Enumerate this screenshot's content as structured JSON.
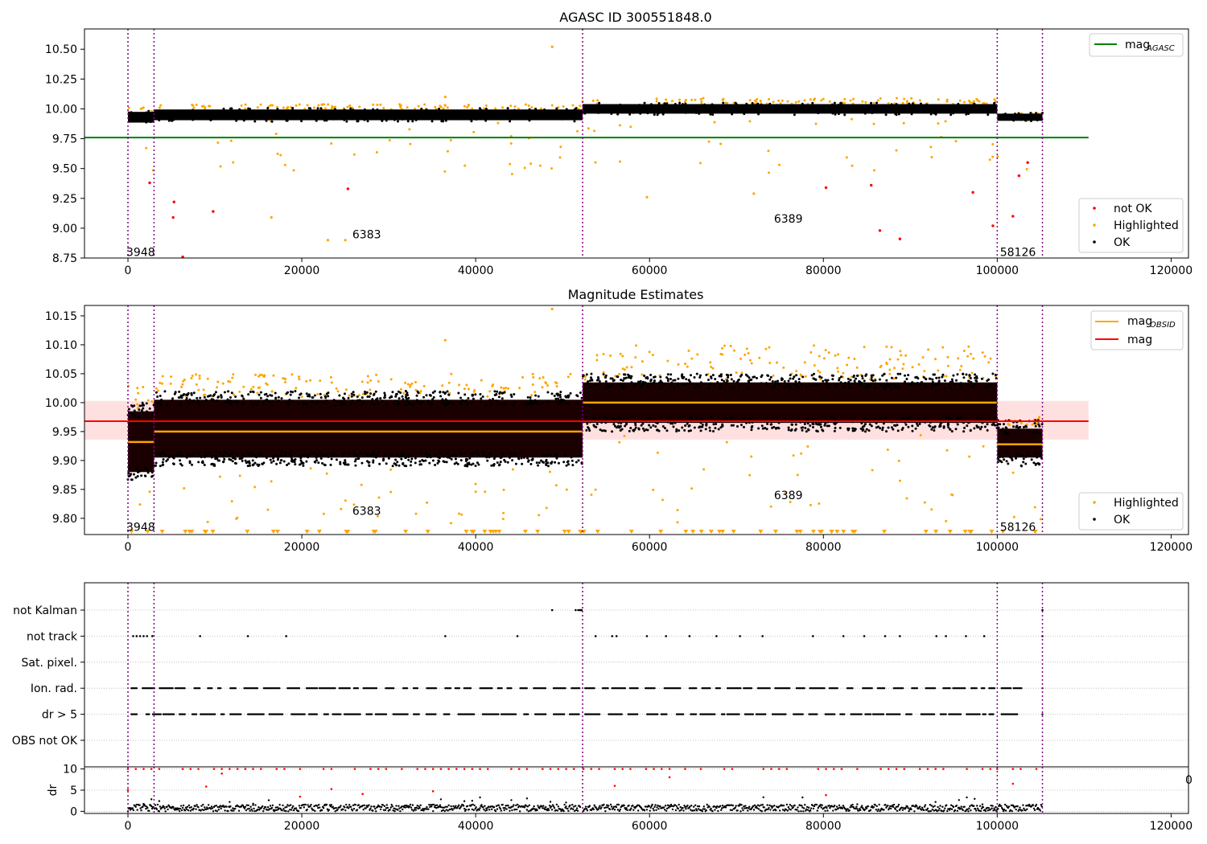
{
  "chart_data": [
    {
      "type": "scatter",
      "title": "AGASC ID 300551848.0",
      "xlim": [
        -5000,
        122000
      ],
      "ylim": [
        8.75,
        10.67
      ],
      "xticks": [
        0,
        20000,
        40000,
        60000,
        80000,
        100000,
        120000
      ],
      "yticks": [
        8.75,
        9.0,
        9.25,
        9.5,
        9.75,
        10.0,
        10.25,
        10.5
      ],
      "ytick_labels": [
        "8.75",
        "9.00",
        "9.25",
        "9.50",
        "9.75",
        "10.00",
        "10.25",
        "10.50"
      ],
      "observation_boundaries": [
        0,
        3000,
        52300,
        100000,
        105200
      ],
      "reference_line": {
        "label": "mag",
        "label_sub": "AGASC",
        "value": 9.76,
        "x_range": [
          -5000,
          110500
        ],
        "color": "#008000"
      },
      "legend_top": [
        {
          "label": "mag",
          "sub": "AGASC",
          "kind": "line",
          "color": "#008000"
        }
      ],
      "legend_bottom": [
        {
          "label": "not OK",
          "color": "#ff0000"
        },
        {
          "label": "Highlighted",
          "color": "#ffa500"
        },
        {
          "label": "OK",
          "color": "#000000"
        }
      ],
      "bands": [
        {
          "x": [
            0,
            3000
          ],
          "ok_center": 9.93,
          "ok_halfwidth": 0.045,
          "hl_top": 10.02
        },
        {
          "x": [
            3000,
            52300
          ],
          "ok_center": 9.95,
          "ok_halfwidth": 0.045,
          "hl_top": 10.04
        },
        {
          "x": [
            52300,
            100000
          ],
          "ok_center": 10.0,
          "ok_halfwidth": 0.04,
          "hl_top": 10.09
        },
        {
          "x": [
            100000,
            105200
          ],
          "ok_center": 9.93,
          "ok_halfwidth": 0.03,
          "hl_top": 9.96
        }
      ],
      "not_ok_points": [
        [
          2500,
          9.38
        ],
        [
          5300,
          9.22
        ],
        [
          5200,
          9.09
        ],
        [
          6300,
          8.76
        ],
        [
          9800,
          9.14
        ],
        [
          25300,
          9.33
        ],
        [
          80300,
          9.34
        ],
        [
          85500,
          9.36
        ],
        [
          86500,
          8.98
        ],
        [
          88800,
          8.91
        ],
        [
          97200,
          9.3
        ],
        [
          99500,
          9.02
        ],
        [
          101800,
          9.1
        ],
        [
          102500,
          9.44
        ],
        [
          103500,
          9.55
        ]
      ],
      "highlight_points": [
        [
          16500,
          9.09
        ],
        [
          23000,
          8.9
        ],
        [
          25000,
          8.9
        ],
        [
          48800,
          10.52
        ],
        [
          59700,
          9.26
        ],
        [
          72000,
          9.29
        ],
        [
          36500,
          10.1
        ]
      ],
      "annotations": [
        {
          "text": "3948",
          "x": 0,
          "y": 8.8
        },
        {
          "text": "6383",
          "x": 26000,
          "y": 8.95
        },
        {
          "text": "6389",
          "x": 74500,
          "y": 9.08
        },
        {
          "text": "58126",
          "x": 100500,
          "y": 8.8
        }
      ]
    },
    {
      "type": "scatter",
      "title": "Magnitude Estimates",
      "xlim": [
        -5000,
        122000
      ],
      "ylim": [
        9.772,
        10.168
      ],
      "xticks": [
        0,
        20000,
        40000,
        60000,
        80000,
        100000,
        120000
      ],
      "yticks": [
        9.8,
        9.85,
        9.9,
        9.95,
        10.0,
        10.05,
        10.1,
        10.15
      ],
      "ytick_labels": [
        "9.80",
        "9.85",
        "9.90",
        "9.95",
        "10.00",
        "10.05",
        "10.10",
        "10.15"
      ],
      "observation_boundaries": [
        0,
        3000,
        52300,
        100000,
        105200
      ],
      "mag_line": {
        "label": "mag",
        "value": 9.968,
        "band": [
          9.936,
          10.003
        ],
        "x_range": [
          -5000,
          110500
        ],
        "color": "#ff0000"
      },
      "obsid_means": [
        {
          "x": [
            0,
            3000
          ],
          "value": 9.932
        },
        {
          "x": [
            3000,
            52300
          ],
          "value": 9.95
        },
        {
          "x": [
            52300,
            100000
          ],
          "value": 10.0
        },
        {
          "x": [
            100000,
            105200
          ],
          "value": 9.928
        }
      ],
      "legend_top": [
        {
          "label": "mag",
          "sub": "OBSID",
          "kind": "line",
          "color": "#ffa500"
        },
        {
          "label": "mag",
          "sub": "",
          "kind": "line",
          "color": "#ff0000"
        }
      ],
      "legend_bottom": [
        {
          "label": "Highlighted",
          "color": "#ffa500"
        },
        {
          "label": "OK",
          "color": "#000000"
        }
      ],
      "bands": [
        {
          "x": [
            0,
            3000
          ],
          "ok_lo": 9.865,
          "ok_hi": 10.0,
          "hl_top": 10.03
        },
        {
          "x": [
            3000,
            52300
          ],
          "ok_lo": 9.89,
          "ok_hi": 10.02,
          "hl_top": 10.05
        },
        {
          "x": [
            52300,
            100000
          ],
          "ok_lo": 9.95,
          "ok_hi": 10.05,
          "hl_top": 10.1
        },
        {
          "x": [
            100000,
            105200
          ],
          "ok_lo": 9.89,
          "ok_hi": 9.97,
          "hl_top": 9.975
        }
      ],
      "highlight_points": [
        [
          48800,
          10.162
        ],
        [
          36500,
          10.108
        ]
      ],
      "annotations": [
        {
          "text": "3948",
          "x": 0,
          "y": 9.785
        },
        {
          "text": "6383",
          "x": 26000,
          "y": 9.813
        },
        {
          "text": "6389",
          "x": 74500,
          "y": 9.84
        },
        {
          "text": "58126",
          "x": 100500,
          "y": 9.785
        }
      ]
    },
    {
      "type": "scatter",
      "title": "",
      "xlim": [
        -5000,
        122000
      ],
      "categories": [
        "not Kalman",
        "not track",
        "Sat. pixel.",
        "Ion. rad.",
        "dr > 5",
        "OBS not OK"
      ],
      "observation_boundaries": [
        0,
        3000,
        52300,
        100000,
        105200
      ],
      "flag_points": {
        "not Kalman": [
          48800,
          51500,
          51800,
          52000,
          52100,
          52200,
          105200
        ],
        "not track": [
          600,
          1000,
          1400,
          1800,
          2200,
          2800,
          8300,
          13800,
          18200,
          36500,
          44800,
          53800,
          55700,
          56200,
          59700,
          61900,
          64600,
          67700,
          70400,
          73000,
          78800,
          82300,
          84700,
          87100,
          88800,
          93000,
          94100,
          96400,
          98500,
          105200
        ],
        "Sat. pixel.": [],
        "Ion. rad.": "dense",
        "dr > 5": "dense",
        "OBS not OK": []
      }
    },
    {
      "type": "scatter",
      "title": "",
      "xlim": [
        -5000,
        122000
      ],
      "ylim": [
        -0.5,
        10.5
      ],
      "ylabel": "dr",
      "yticks": [
        0,
        5,
        10
      ],
      "ytick_labels": [
        "0",
        "5",
        "10"
      ],
      "xticks": [
        0,
        20000,
        40000,
        60000,
        80000,
        100000,
        120000
      ],
      "xtick_labels": [
        "0",
        "20000",
        "40000",
        "60000",
        "80000",
        "100000",
        "120000"
      ],
      "observation_boundaries": [
        0,
        3000,
        52300,
        100000,
        105200
      ],
      "clipped_value": 10,
      "clipped_color": "#ff0000"
    }
  ],
  "colors": {
    "ok": "#000000",
    "highlight": "#ffa500",
    "not_ok": "#ff0000",
    "boundary": "#800080",
    "grid": "#b0b0b0"
  },
  "right_edge_glyph": "0"
}
